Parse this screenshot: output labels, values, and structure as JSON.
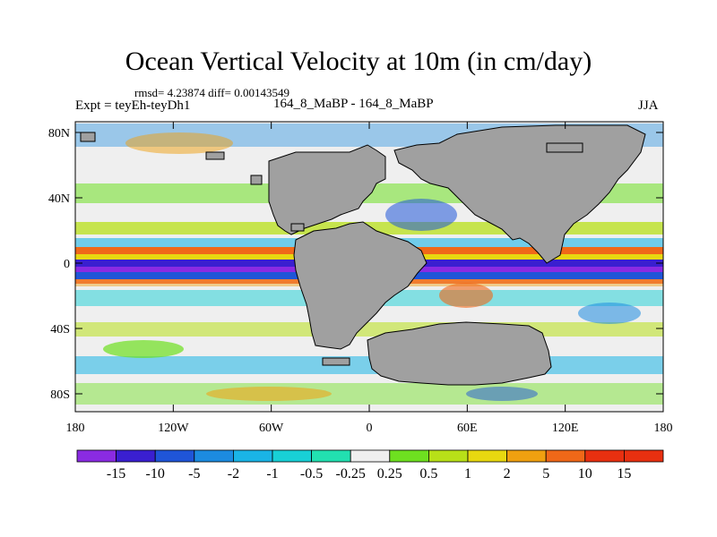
{
  "title": "Ocean Vertical Velocity at 10m (in cm/day)",
  "stats": "rmsd= 4.23874 diff= 0.00143549",
  "experiment": "Expt = teyEh-teyDh1",
  "case_info": "164_8_MaBP - 164_8_MaBP",
  "season": "JJA",
  "y_ticks": [
    "80N",
    "40N",
    "0",
    "40S",
    "80S"
  ],
  "x_ticks": [
    "180",
    "120W",
    "60W",
    "0",
    "60E",
    "120E",
    "180"
  ],
  "colorbar": {
    "labels": [
      "-15",
      "-10",
      "-5",
      "-2",
      "-1",
      "-0.5",
      "-0.25",
      "0.25",
      "0.5",
      "1",
      "2",
      "5",
      "10",
      "15"
    ],
    "colors": [
      "#8a2be2",
      "#3a1fd0",
      "#1f55d8",
      "#1c8be0",
      "#1ab4e6",
      "#18d0d6",
      "#22e0b0",
      "#efefef",
      "#6ee020",
      "#b8e018",
      "#e8d810",
      "#f0a010",
      "#f06818",
      "#e83010"
    ]
  },
  "land_color": "#a0a0a0"
}
